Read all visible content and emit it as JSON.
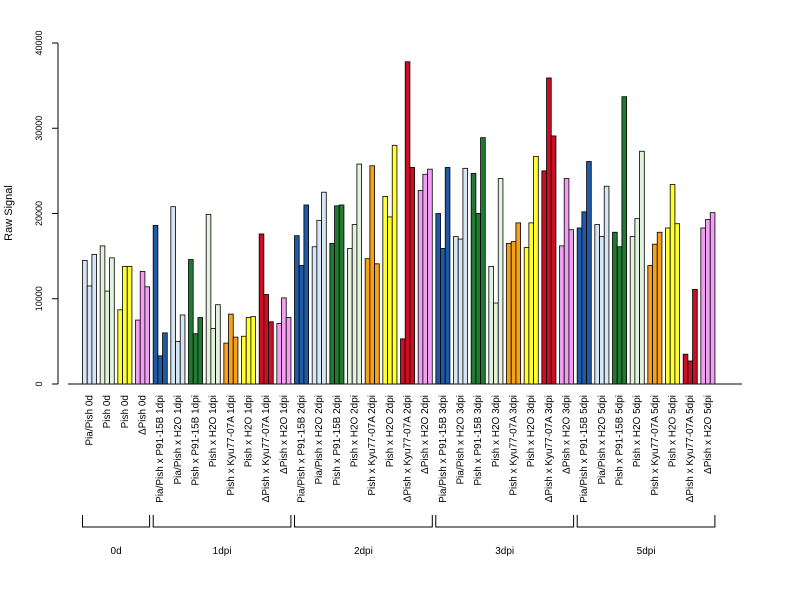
{
  "chart_data": {
    "type": "bar",
    "title": "",
    "xlabel": "",
    "ylabel": "Raw Signal",
    "ylim": [
      0,
      40000
    ],
    "yticks": [
      0,
      10000,
      20000,
      30000,
      40000
    ],
    "grid": false,
    "legend": "none",
    "series_colors": {
      "lightblue": "#d6e6f5",
      "darkblue": "#1f5aa6",
      "lightgreen": "#e2f2dc",
      "darkgreen": "#217a32",
      "orange": "#f5a21a",
      "yellow": "#ffff33",
      "red": "#cc0e22",
      "violet": "#f29ef2"
    },
    "groups": [
      {
        "label": "Pia/Pish 0d",
        "color": "lightblue",
        "values": [
          14500,
          11500,
          15200
        ]
      },
      {
        "label": "Pish 0d",
        "color": "lightgreen",
        "values": [
          16200,
          10900,
          14800
        ]
      },
      {
        "label": "Pish 0d",
        "color": "yellow",
        "values": [
          8700,
          13800,
          13800
        ]
      },
      {
        "label": "ΔPish 0d",
        "color": "violet",
        "values": [
          7500,
          13200,
          11400
        ]
      },
      {
        "label": "Pia/Pish x P91-15B 1dpi",
        "color": "darkblue",
        "values": [
          18600,
          3300,
          6000
        ]
      },
      {
        "label": "Pia/Pish x H2O 1dpi",
        "color": "lightblue",
        "values": [
          20800,
          5000,
          8100
        ]
      },
      {
        "label": "Pish x P91-15B 1dpi",
        "color": "darkgreen",
        "values": [
          14600,
          5900,
          7800
        ]
      },
      {
        "label": "Pish x H2O 1dpi",
        "color": "lightgreen",
        "values": [
          19900,
          6500,
          9300
        ]
      },
      {
        "label": "Pish x Kyu77-07A 1dpi",
        "color": "orange",
        "values": [
          4800,
          8200,
          5500
        ]
      },
      {
        "label": "Pish x H2O 1dpi",
        "color": "yellow",
        "values": [
          5600,
          7800,
          7900
        ]
      },
      {
        "label": "ΔPish x Kyu77-07A 1dpi",
        "color": "red",
        "values": [
          17600,
          10500,
          7300
        ]
      },
      {
        "label": "ΔPish x H2O 1dpi",
        "color": "violet",
        "values": [
          7100,
          10100,
          7800
        ]
      },
      {
        "label": "Pia/Pish x P91-15B 2dpi",
        "color": "darkblue",
        "values": [
          17400,
          13900,
          21000
        ]
      },
      {
        "label": "Pia/Pish x H2O 2dpi",
        "color": "lightblue",
        "values": [
          16100,
          19200,
          22500
        ]
      },
      {
        "label": "Pish x P91-15B 2dpi",
        "color": "darkgreen",
        "values": [
          16500,
          20900,
          21000
        ]
      },
      {
        "label": "Pish x H2O 2dpi",
        "color": "lightgreen",
        "values": [
          15900,
          18700,
          25800
        ]
      },
      {
        "label": "Pish x Kyu77-07A 2dpi",
        "color": "orange",
        "values": [
          14700,
          25600,
          14100
        ]
      },
      {
        "label": "Pish x H2O 2dpi",
        "color": "yellow",
        "values": [
          22000,
          19600,
          28000
        ]
      },
      {
        "label": "ΔPish x Kyu77-07A 2dpi",
        "color": "red",
        "values": [
          5300,
          37800,
          25400
        ]
      },
      {
        "label": "ΔPish x H2O 2dpi",
        "color": "violet",
        "values": [
          22700,
          24600,
          25200
        ]
      },
      {
        "label": "Pia/Pish x P91-15B 3dpi",
        "color": "darkblue",
        "values": [
          20000,
          15900,
          25400
        ]
      },
      {
        "label": "Pia/Pish x H2O 3dpi",
        "color": "lightblue",
        "values": [
          17300,
          17000,
          25300
        ]
      },
      {
        "label": "Pish x P91-15B 3dpi",
        "color": "darkgreen",
        "values": [
          24700,
          20000,
          28900
        ]
      },
      {
        "label": "Pish x H2O 3dpi",
        "color": "lightgreen",
        "values": [
          13800,
          9500,
          24100
        ]
      },
      {
        "label": "Pish x Kyu77-07A 3dpi",
        "color": "orange",
        "values": [
          16500,
          16700,
          18900
        ]
      },
      {
        "label": "Pish x H2O 3dpi",
        "color": "yellow",
        "values": [
          16000,
          18900,
          26700
        ]
      },
      {
        "label": "ΔPish x Kyu77-07A 3dpi",
        "color": "red",
        "values": [
          25000,
          35900,
          29100
        ]
      },
      {
        "label": "ΔPish x H2O 3dpi",
        "color": "violet",
        "values": [
          16200,
          24100,
          18100
        ]
      },
      {
        "label": "Pia/Pish x P91-15B 5dpi",
        "color": "darkblue",
        "values": [
          18300,
          20200,
          26100
        ]
      },
      {
        "label": "Pia/Pish x H2O 5dpi",
        "color": "lightblue",
        "values": [
          18700,
          17300,
          23200
        ]
      },
      {
        "label": "Pish x P91-15B 5dpi",
        "color": "darkgreen",
        "values": [
          17800,
          16100,
          33700
        ]
      },
      {
        "label": "Pish x H2O 5dpi",
        "color": "lightgreen",
        "values": [
          17300,
          19400,
          27300
        ]
      },
      {
        "label": "Pish x Kyu77-07A 5dpi",
        "color": "orange",
        "values": [
          13900,
          16400,
          17800
        ]
      },
      {
        "label": "Pish x H2O 5dpi",
        "color": "yellow",
        "values": [
          18300,
          23400,
          18800
        ]
      },
      {
        "label": "ΔPish x Kyu77-07A 5dpi",
        "color": "red",
        "values": [
          3500,
          2700,
          11100
        ]
      },
      {
        "label": "ΔPish x H2O 5dpi",
        "color": "violet",
        "values": [
          18300,
          19300,
          20100
        ]
      }
    ],
    "timepoints": [
      {
        "label": "0d",
        "first": 0,
        "last": 3
      },
      {
        "label": "1dpi",
        "first": 4,
        "last": 11
      },
      {
        "label": "2dpi",
        "first": 12,
        "last": 19
      },
      {
        "label": "3dpi",
        "first": 20,
        "last": 27
      },
      {
        "label": "5dpi",
        "first": 28,
        "last": 35
      }
    ]
  }
}
